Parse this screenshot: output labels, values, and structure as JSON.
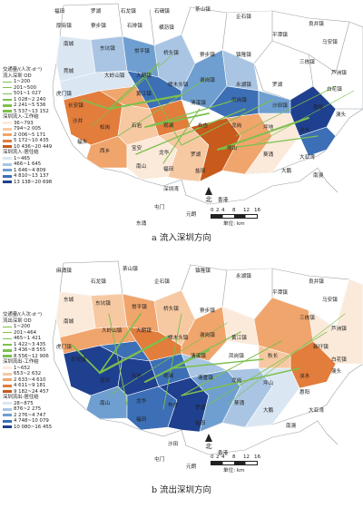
{
  "panel_a": {
    "caption": "a 流入深圳方向",
    "legend": {
      "od_title_line1": "交通量/(人次·d⁻¹)",
      "od_title_line2": "流入深圳 OD",
      "od_classes": [
        "1~200",
        "201~500",
        "501~1 027",
        "1 028~2 240",
        "2 241~5 536",
        "5 537~13 152"
      ],
      "work_title": "深圳流入-工作结",
      "work_classes": [
        "36~793",
        "794~2 005",
        "2 006~5 171",
        "5 172~10 435",
        "10 436~20 449"
      ],
      "home_title": "深圳流入-居住结",
      "home_classes": [
        "1~465",
        "466~1 645",
        "1 646~4 809",
        "4 810~13 137",
        "13 138~20 698"
      ]
    },
    "towns": [
      "清溪镇",
      "凤岗镇",
      "黄江镇",
      "塘厦镇",
      "樟木头镇",
      "谢岗镇",
      "大朗镇",
      "大岭山镇",
      "长安镇",
      "虎门镇",
      "观澜",
      "龙华",
      "布吉",
      "石岩",
      "沙井",
      "松岗",
      "福永",
      "西乡",
      "宝安",
      "南山",
      "福田",
      "罗湖",
      "盐田",
      "龙岗",
      "坪山",
      "坪地",
      "葵涌",
      "大鹏",
      "南澳",
      "惠阳",
      "淡水",
      "新圩镇",
      "秋长",
      "沙田镇",
      "澳头",
      "惠州",
      "陈江",
      "东坑镇",
      "常平镇",
      "桥头镇",
      "寮步镇",
      "东城",
      "南城",
      "莞城",
      "厚街镇",
      "沙田",
      "麻涌镇",
      "望牛墩",
      "中堂镇",
      "石龙镇",
      "石碣镇",
      "茶山镇",
      "企石镇",
      "石排镇",
      "横沥镇",
      "镇隆镇",
      "永湖镇",
      "良井镇",
      "平潭镇",
      "马安镇",
      "三栋镇",
      "芦洲镇",
      "白花镇",
      "大亚湾",
      "深圳湾",
      "香港",
      "屯门",
      "元朗",
      "东涌"
    ]
  },
  "panel_b": {
    "caption": "b 流出深圳方向",
    "legend": {
      "od_title_line1": "交通量/(人次·d⁻¹)",
      "od_title_line2": "流出深圳 OD",
      "od_classes": [
        "1~200",
        "201~464",
        "465~1 421",
        "1 422~3 435",
        "3 436~8 555",
        "8 556~12 906"
      ],
      "work_title": "深圳流出-工作结",
      "work_classes": [
        "1~652",
        "653~2 632",
        "2 633~4 610",
        "4 611~9 181",
        "9 182~24 457"
      ],
      "home_title": "深圳流出-居住结",
      "home_classes": [
        "28~875",
        "876~2 275",
        "2 276~4 747",
        "4 748~10 079",
        "10 080~16 455"
      ]
    },
    "towns": [
      "麻涌镇",
      "茶山镇",
      "石龙镇",
      "企石镇",
      "东坑镇",
      "常平镇",
      "桥头镇",
      "寮步镇",
      "东城",
      "南城",
      "大岭山镇",
      "大朗镇",
      "黄江镇",
      "樟木头镇",
      "谢岗镇",
      "长安镇",
      "虎门镇",
      "清溪镇",
      "凤岗镇",
      "塘厦镇",
      "新圩镇",
      "秋长",
      "淡水",
      "惠阳",
      "澳头",
      "大亚湾",
      "龙岗",
      "坪山",
      "葵涌",
      "大鹏",
      "南澳",
      "石岩",
      "宝安",
      "南山",
      "福田",
      "罗湖",
      "盐田",
      "观澜",
      "龙华",
      "布吉",
      "香港",
      "屯门",
      "元朗",
      "沙田",
      "镇隆镇",
      "永湖镇",
      "良井镇",
      "平潭镇",
      "马安镇",
      "三栋镇",
      "芦洲镇",
      "白花镇"
    ]
  },
  "scale_ticks": [
    "0",
    "2",
    "4",
    "8",
    "12",
    "16"
  ],
  "scale_unit": "单位: km",
  "north_label": "北",
  "colors": {
    "work_ramp": [
      "#fbe9d9",
      "#f7c9a2",
      "#f0a56c",
      "#e27d3c",
      "#c85a1c"
    ],
    "home_ramp": [
      "#dbe6f3",
      "#a9c5e3",
      "#6f9fd0",
      "#3c6fb6",
      "#1f3f8f"
    ],
    "od_line": "#7cc04e",
    "land": "#ffffff",
    "border": "#9aa0a6"
  }
}
